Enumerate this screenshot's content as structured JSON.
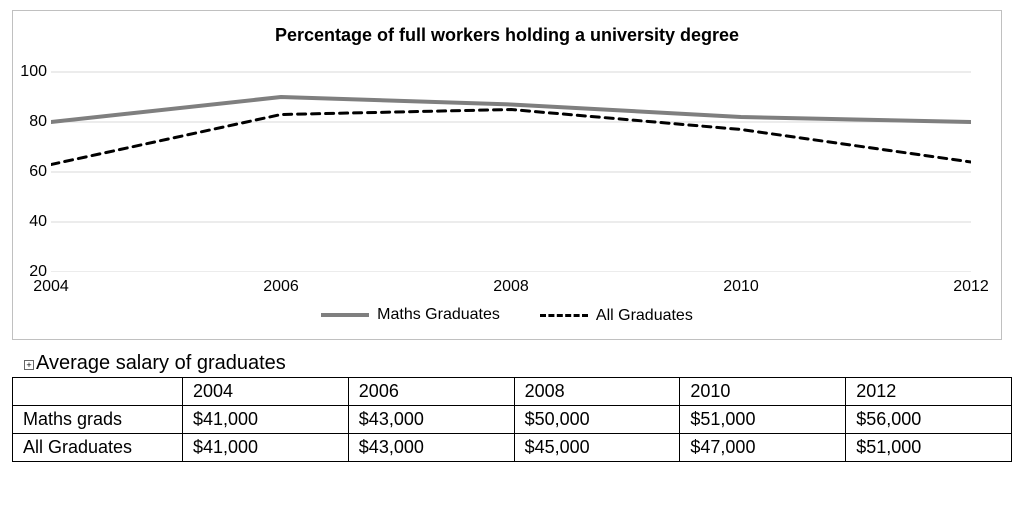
{
  "chart": {
    "type": "line",
    "title": "Percentage of full workers holding a university degree",
    "title_fontsize": 18,
    "background_color": "#ffffff",
    "grid_color": "#d9d9d9",
    "border_color": "#c0c0c0",
    "axis_font_size": 16,
    "legend_font_size": 16,
    "x": {
      "ticks": [
        2004,
        2006,
        2008,
        2010,
        2012
      ],
      "min": 2004,
      "max": 2012
    },
    "y": {
      "ticks": [
        20,
        40,
        60,
        80,
        100
      ],
      "min": 20,
      "max": 108
    },
    "series": [
      {
        "name": "Maths Graduates",
        "color": "#7f7f7f",
        "line_width": 4,
        "dash": "solid",
        "x": [
          2004,
          2006,
          2008,
          2010,
          2012
        ],
        "y": [
          80,
          90,
          87,
          82,
          80
        ]
      },
      {
        "name": "All Graduates",
        "color": "#000000",
        "line_width": 3,
        "dash": "8,6",
        "x": [
          2004,
          2006,
          2008,
          2010,
          2012
        ],
        "y": [
          63,
          83,
          85,
          77,
          64
        ]
      }
    ]
  },
  "table": {
    "caption": "Average salary of graduates",
    "caption_fontsize": 20,
    "columns": [
      "",
      "2004",
      "2006",
      "2008",
      "2010",
      "2012"
    ],
    "rows": [
      [
        "Maths grads",
        "$41,000",
        "$43,000",
        "$50,000",
        "$51,000",
        "$56,000"
      ],
      [
        "All Graduates",
        "$41,000",
        "$43,000",
        "$45,000",
        "$47,000",
        "$51,000"
      ]
    ],
    "border_color": "#000000",
    "cell_fontsize": 18
  }
}
